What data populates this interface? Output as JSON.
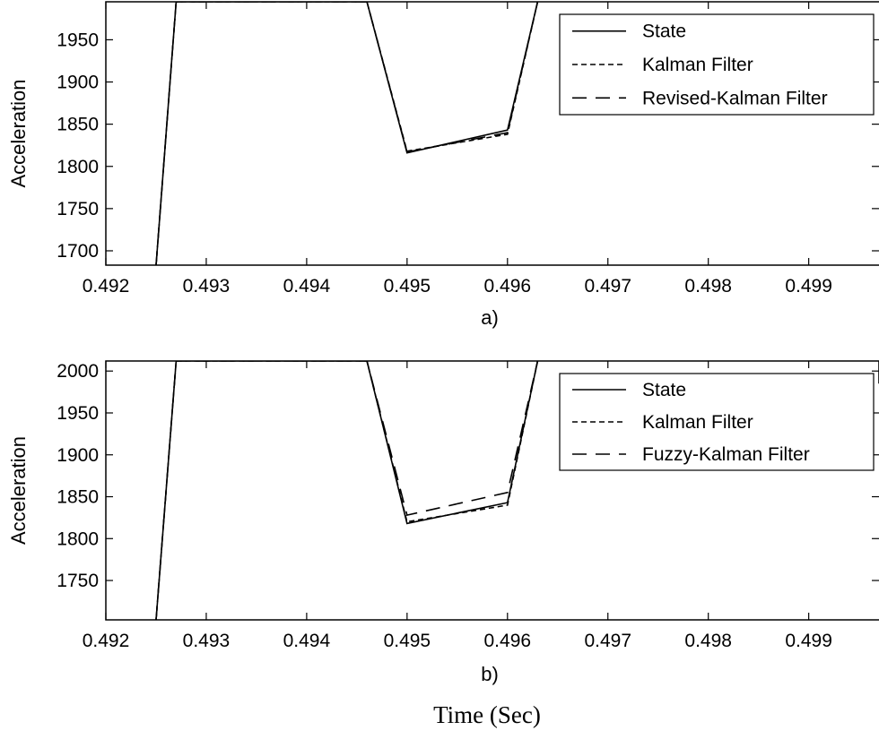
{
  "chart_data": [
    {
      "type": "line",
      "caption": "a)",
      "xlabel": "",
      "ylabel": "Acceleration",
      "xlim": [
        0.492,
        0.4997
      ],
      "ylim": [
        1683,
        1995
      ],
      "xticks": [
        0.492,
        0.493,
        0.494,
        0.495,
        0.496,
        0.497,
        0.498,
        0.499
      ],
      "xtick_labels": [
        "0.492",
        "0.493",
        "0.494",
        "0.495",
        "0.496",
        "0.497",
        "0.498",
        "0.499"
      ],
      "yticks": [
        1700,
        1750,
        1800,
        1850,
        1900,
        1950
      ],
      "ytick_labels": [
        "1700",
        "1750",
        "1800",
        "1850",
        "1900",
        "1950"
      ],
      "grid": false,
      "legend_position": "top-right",
      "series": [
        {
          "name": "State",
          "style": "solid",
          "color": "#000000",
          "x": [
            0.4925,
            0.4927,
            0.4946,
            0.495,
            0.496,
            0.4963
          ],
          "y": [
            1683,
            1995,
            1995,
            1816,
            1843,
            1995
          ]
        },
        {
          "name": "Kalman Filter",
          "style": "dotted",
          "color": "#000000",
          "x": [
            0.4925,
            0.4927,
            0.4946,
            0.495,
            0.496,
            0.4963
          ],
          "y": [
            1683,
            1995,
            1995,
            1818,
            1838,
            1995
          ]
        },
        {
          "name": "Revised-Kalman Filter",
          "style": "dashed",
          "color": "#000000",
          "x": [
            0.4925,
            0.4927,
            0.4946,
            0.495,
            0.496,
            0.4963
          ],
          "y": [
            1683,
            1995,
            1995,
            1817,
            1840,
            1995
          ]
        }
      ]
    },
    {
      "type": "line",
      "caption": "b)",
      "xlabel": "",
      "ylabel": "Acceleration",
      "xlim": [
        0.492,
        0.4997
      ],
      "ylim": [
        1703,
        2012
      ],
      "xticks": [
        0.492,
        0.493,
        0.494,
        0.495,
        0.496,
        0.497,
        0.498,
        0.499
      ],
      "xtick_labels": [
        "0.492",
        "0.493",
        "0.494",
        "0.495",
        "0.496",
        "0.497",
        "0.498",
        "0.499"
      ],
      "yticks": [
        1750,
        1800,
        1850,
        1900,
        1950,
        2000
      ],
      "ytick_labels": [
        "1750",
        "1800",
        "1850",
        "1900",
        "1950",
        "2000"
      ],
      "grid": false,
      "legend_position": "top-right",
      "series": [
        {
          "name": "State",
          "style": "solid",
          "color": "#000000",
          "x": [
            0.4925,
            0.4927,
            0.4946,
            0.495,
            0.496,
            0.4963
          ],
          "y": [
            1703,
            2012,
            2012,
            1818,
            1843,
            2012
          ]
        },
        {
          "name": "Kalman Filter",
          "style": "dotted",
          "color": "#000000",
          "x": [
            0.4925,
            0.4927,
            0.4946,
            0.495,
            0.496,
            0.4963
          ],
          "y": [
            1703,
            2012,
            2012,
            1820,
            1840,
            2012
          ]
        },
        {
          "name": "Fuzzy-Kalman Filter",
          "style": "dashed",
          "color": "#000000",
          "x": [
            0.4925,
            0.4927,
            0.4946,
            0.495,
            0.496,
            0.4963
          ],
          "y": [
            1703,
            2012,
            2012,
            1828,
            1855,
            2012
          ]
        },
        {
          "name": "",
          "style": "solid",
          "color": "#000000",
          "x": [
            0.4997,
            0.4997
          ],
          "y": [
            1985,
            2012
          ]
        }
      ]
    }
  ],
  "figure": {
    "xlabel": "Time (Sec)"
  }
}
